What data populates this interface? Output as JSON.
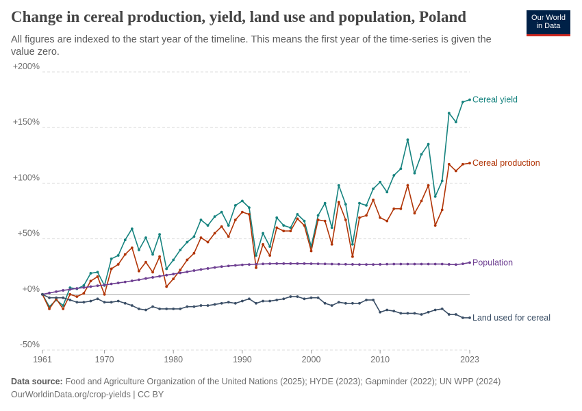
{
  "header": {
    "title": "Change in cereal production, yield, land use and population, Poland",
    "subtitle": "All figures are indexed to the start year of the timeline. This means the first year of the time-series is given the value zero.",
    "logo_line1": "Our World",
    "logo_line2": "in Data"
  },
  "footer": {
    "source_label": "Data source:",
    "source_text": "Food and Agriculture Organization of the United Nations (2025); HYDE (2023); Gapminder (2022); UN WPP (2024)",
    "url_line": "OurWorldinData.org/crop-yields | CC BY"
  },
  "colors": {
    "Cereal yield": "#16837f",
    "Cereal production": "#b13507",
    "Population": "#6d3e91",
    "Land used for cereal": "#3a4e66",
    "grid": "#dddddd",
    "zero_line": "#a8a8a8"
  },
  "chart_data": {
    "type": "line",
    "title": "Change in cereal production, yield, land use and population, Poland",
    "xlabel": "",
    "ylabel": "",
    "xlim": [
      1961,
      2023
    ],
    "ylim": [
      -50,
      200
    ],
    "y_ticks": [
      -50,
      0,
      50,
      100,
      150,
      200
    ],
    "y_tick_labels": [
      "-50%",
      "+0%",
      "+50%",
      "+100%",
      "+150%",
      "+200%"
    ],
    "x_ticks": [
      1961,
      1970,
      1980,
      1990,
      2000,
      2010,
      2023
    ],
    "x_tick_labels": [
      "1961",
      "1970",
      "1980",
      "1990",
      "2000",
      "2010",
      "2023"
    ],
    "grid": "horizontal dashed",
    "legend": "inline labels at right end of lines",
    "start_year": 1961,
    "series": [
      {
        "name": "Cereal yield",
        "values": [
          0,
          -11,
          -5,
          -10,
          6,
          5,
          8,
          19,
          20,
          8,
          32,
          35,
          49,
          59,
          40,
          51,
          36,
          54,
          23,
          31,
          40,
          47,
          52,
          67,
          62,
          70,
          74,
          62,
          80,
          84,
          78,
          35,
          55,
          43,
          69,
          62,
          60,
          72,
          66,
          43,
          71,
          82,
          60,
          98,
          81,
          45,
          82,
          80,
          95,
          101,
          92,
          107,
          113,
          139,
          109,
          126,
          135,
          88,
          102,
          163,
          155,
          173,
          175
        ]
      },
      {
        "name": "Cereal production",
        "values": [
          0,
          -13,
          -4,
          -13,
          0,
          -2,
          1,
          12,
          16,
          0,
          23,
          27,
          36,
          42,
          21,
          29,
          20,
          34,
          7,
          14,
          22,
          31,
          37,
          51,
          47,
          55,
          61,
          52,
          67,
          74,
          72,
          24,
          45,
          35,
          60,
          57,
          57,
          68,
          62,
          39,
          67,
          66,
          45,
          83,
          67,
          34,
          69,
          71,
          85,
          69,
          66,
          77,
          77,
          98,
          73,
          84,
          98,
          62,
          76,
          117,
          111,
          117,
          118
        ]
      },
      {
        "name": "Population",
        "values": [
          0,
          1.3,
          2.5,
          3.6,
          4.5,
          5.4,
          6.2,
          7.0,
          7.8,
          8.5,
          9.4,
          10.3,
          11.2,
          12.2,
          13.2,
          14.3,
          15.3,
          16.3,
          17.3,
          18.3,
          19.3,
          20.3,
          21.4,
          22.4,
          23.3,
          24.2,
          25.0,
          25.6,
          26.1,
          26.6,
          26.9,
          27.2,
          27.4,
          27.6,
          27.7,
          27.7,
          27.7,
          27.7,
          27.7,
          27.6,
          27.5,
          27.4,
          27.3,
          27.2,
          27.1,
          27.0,
          26.9,
          26.9,
          26.9,
          27.0,
          27.2,
          27.3,
          27.3,
          27.3,
          27.3,
          27.3,
          27.3,
          27.3,
          27.3,
          27.0,
          26.8,
          27.5,
          28.6
        ]
      },
      {
        "name": "Land used for cereal",
        "values": [
          0,
          -3,
          -3,
          -3,
          -5,
          -7,
          -7,
          -6,
          -4,
          -7,
          -7,
          -6,
          -8,
          -10,
          -13,
          -14,
          -11,
          -13,
          -13,
          -13,
          -13,
          -11,
          -11,
          -10,
          -10,
          -9,
          -8,
          -7,
          -8,
          -6,
          -4,
          -8,
          -6,
          -6,
          -5,
          -4,
          -2,
          -2,
          -4,
          -3,
          -3,
          -8,
          -10,
          -7,
          -8,
          -8,
          -8,
          -5,
          -5,
          -16,
          -14,
          -15,
          -17,
          -17,
          -17,
          -18,
          -16,
          -14,
          -13,
          -18,
          -18,
          -21,
          -21
        ]
      }
    ]
  }
}
